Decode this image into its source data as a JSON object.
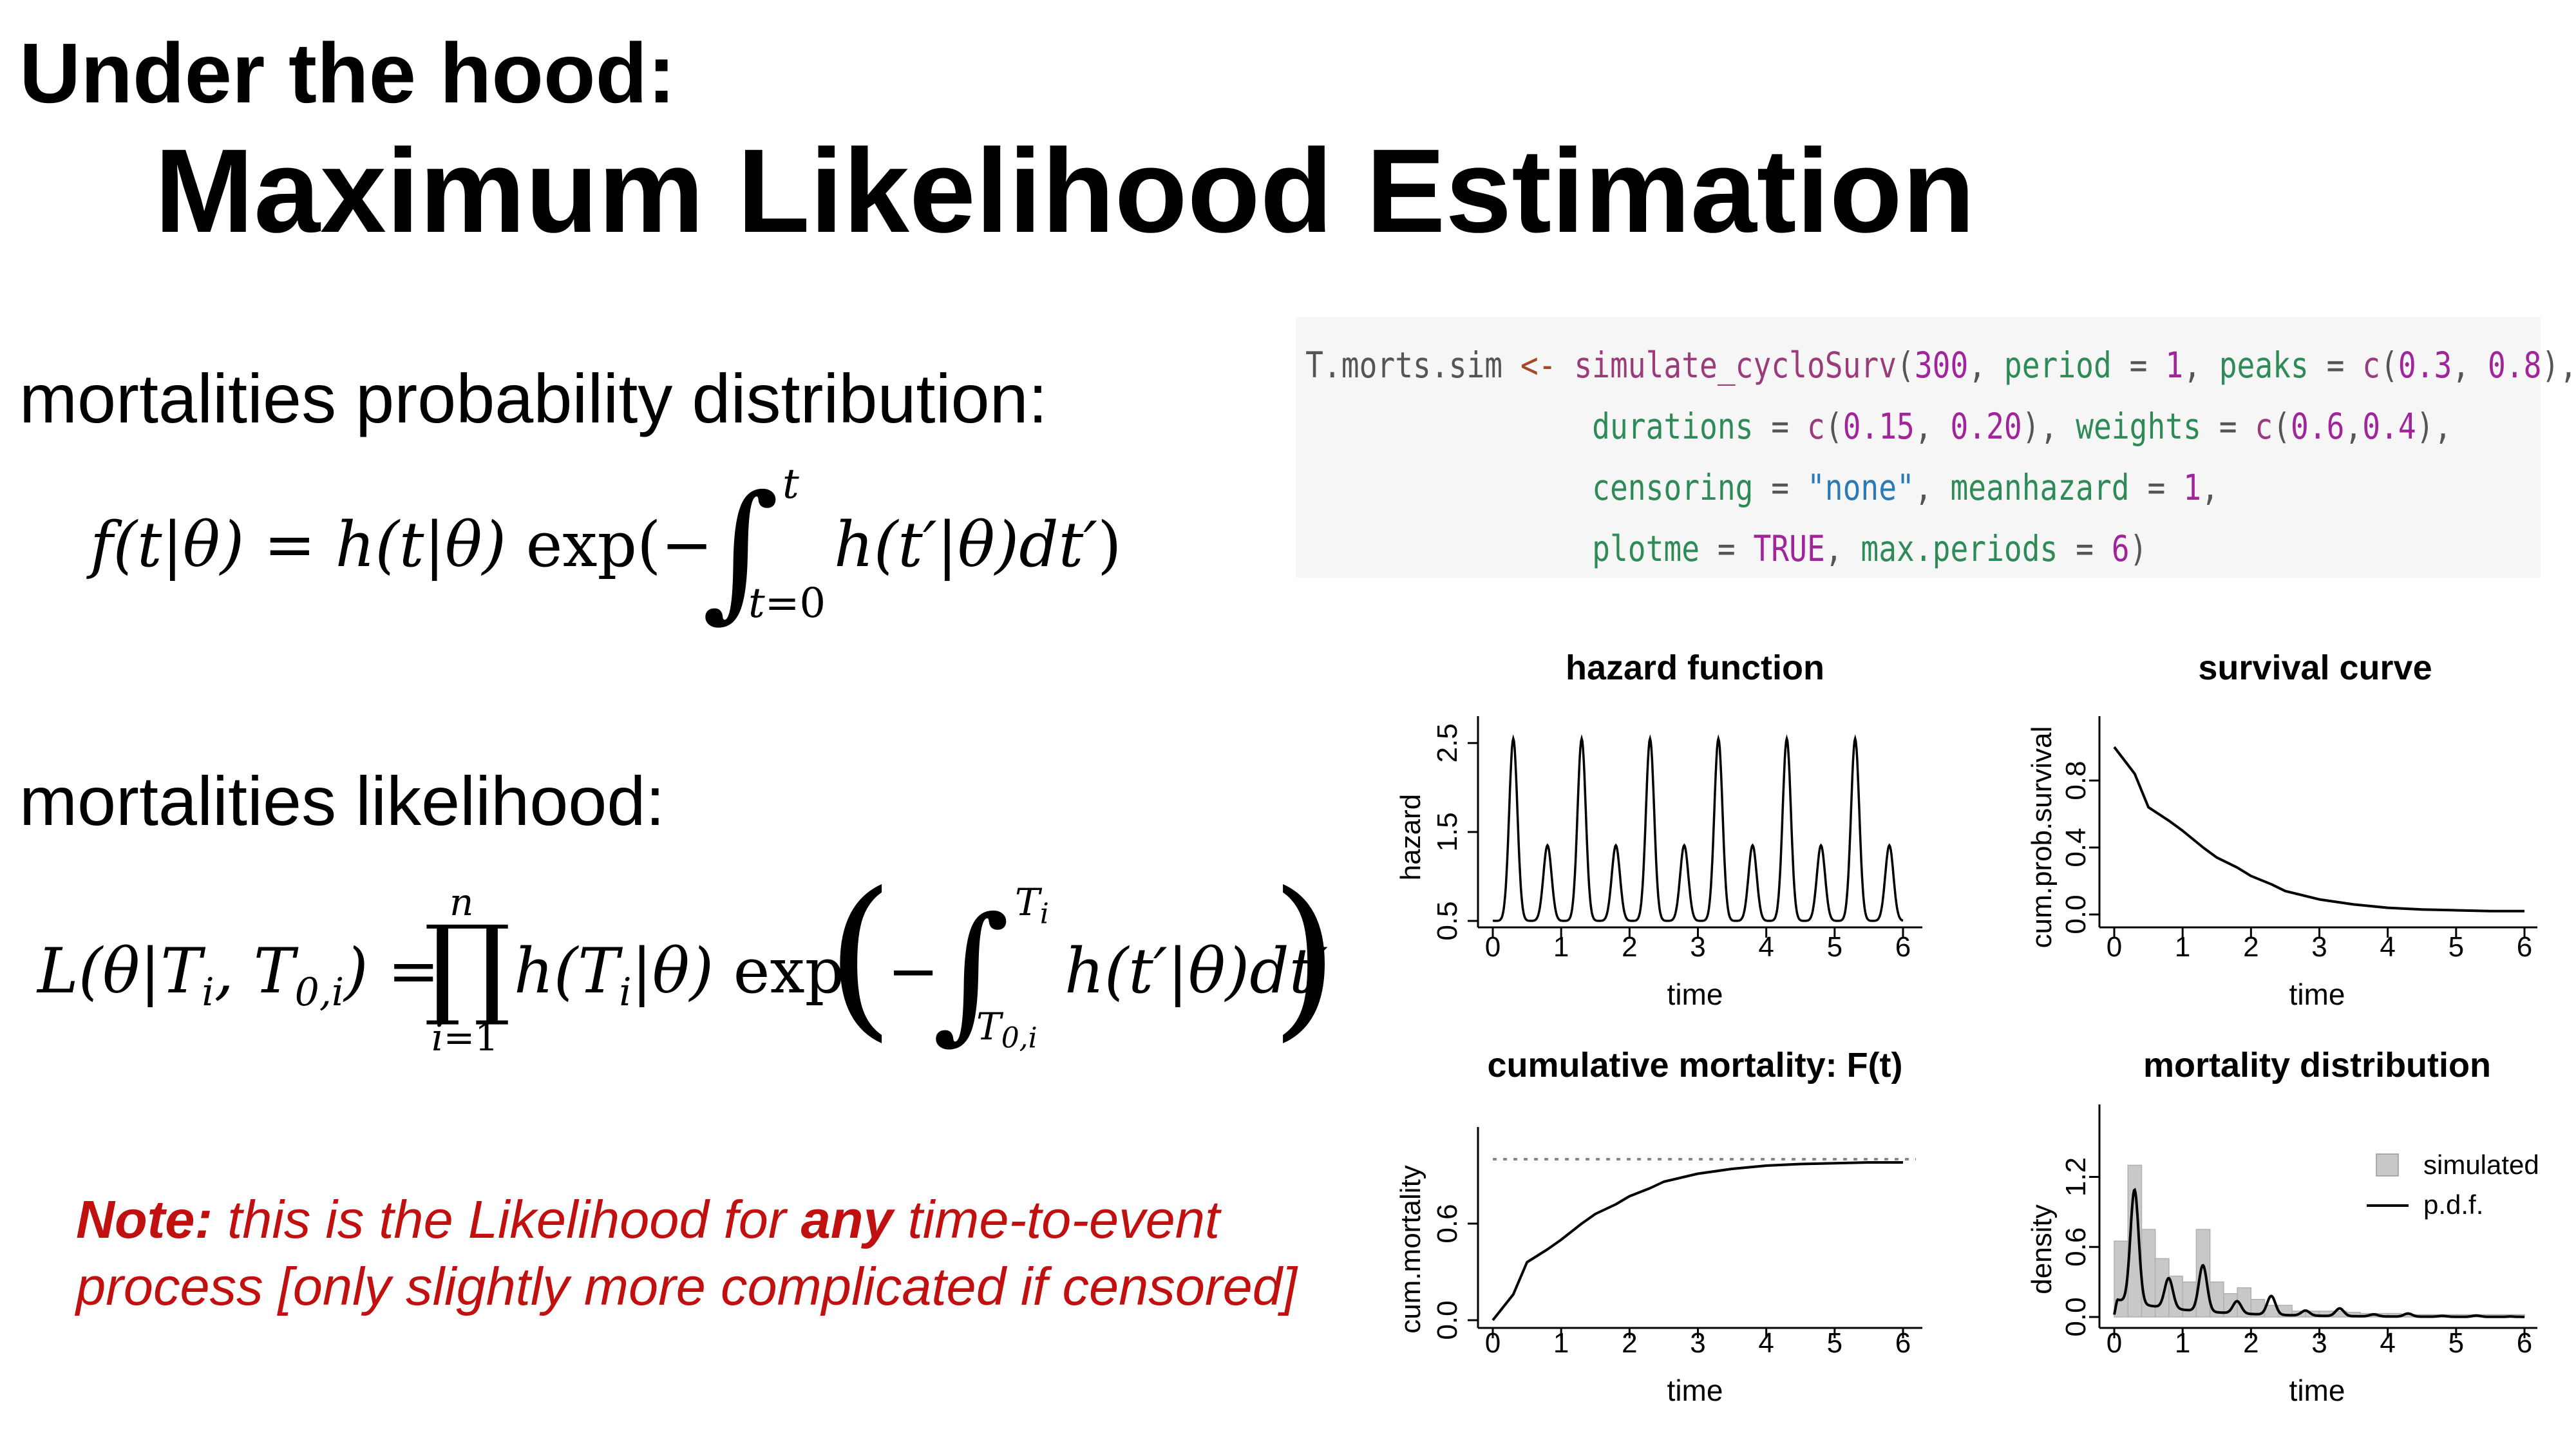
{
  "slide": {
    "title_line1": "Under the hood:",
    "title_line2": "Maximum Likelihood Estimation",
    "label_distribution": "mortalities probability distribution:",
    "label_likelihood": "mortalities likelihood:",
    "note": {
      "lead": "Note:",
      "text_a": " this is the Likelihood for ",
      "emph": "any",
      "text_b": " time-to-event process [only slightly more complicated if censored]"
    }
  },
  "code": {
    "lines": [
      [
        [
          "T.morts.sim ",
          "p"
        ],
        [
          "<- ",
          "o"
        ],
        [
          "simulate_cycloSurv",
          "f"
        ],
        [
          "(",
          "p"
        ],
        [
          "300",
          "n"
        ],
        [
          ", ",
          "p"
        ],
        [
          "period",
          "a"
        ],
        [
          " = ",
          "p"
        ],
        [
          "1",
          "n"
        ],
        [
          ", ",
          "p"
        ],
        [
          "peaks",
          "a"
        ],
        [
          " = ",
          "p"
        ],
        [
          "c",
          "f"
        ],
        [
          "(",
          "p"
        ],
        [
          "0.3",
          "n"
        ],
        [
          ", ",
          "p"
        ],
        [
          "0.8",
          "n"
        ],
        [
          "),",
          "p"
        ]
      ],
      [
        [
          "                durations",
          "a"
        ],
        [
          " = ",
          "p"
        ],
        [
          "c",
          "f"
        ],
        [
          "(",
          "p"
        ],
        [
          "0.15",
          "n"
        ],
        [
          ", ",
          "p"
        ],
        [
          "0.20",
          "n"
        ],
        [
          "), ",
          "p"
        ],
        [
          "weights",
          "a"
        ],
        [
          " = ",
          "p"
        ],
        [
          "c",
          "f"
        ],
        [
          "(",
          "p"
        ],
        [
          "0.6",
          "n"
        ],
        [
          ",",
          "p"
        ],
        [
          "0.4",
          "n"
        ],
        [
          "),",
          "p"
        ]
      ],
      [
        [
          "                censoring",
          "a"
        ],
        [
          " = ",
          "p"
        ],
        [
          "\"none\"",
          "s"
        ],
        [
          ", ",
          "p"
        ],
        [
          "meanhazard",
          "a"
        ],
        [
          " = ",
          "p"
        ],
        [
          "1",
          "n"
        ],
        [
          ",",
          "p"
        ]
      ],
      [
        [
          "                plotme",
          "a"
        ],
        [
          " = ",
          "p"
        ],
        [
          "TRUE",
          "n"
        ],
        [
          ", ",
          "p"
        ],
        [
          "max.periods",
          "a"
        ],
        [
          " = ",
          "p"
        ],
        [
          "6",
          "n"
        ],
        [
          ")",
          "p"
        ]
      ]
    ]
  },
  "chart_data": [
    {
      "type": "line",
      "title": "hazard function",
      "xlabel": "time",
      "ylabel": "hazard",
      "xlim": [
        0,
        6
      ],
      "ylim": [
        0.5,
        2.6
      ],
      "xticks": [
        "0",
        "1",
        "2",
        "3",
        "4",
        "5",
        "6"
      ],
      "yticks": [
        "0.5",
        "1.5",
        "2.5"
      ],
      "period": 1,
      "peaks": [
        0.3,
        0.8
      ],
      "peak_heights": [
        2.55,
        1.35
      ],
      "baseline": 0.5
    },
    {
      "type": "line",
      "title": "survival curve",
      "xlabel": "time",
      "ylabel": "cum.prob.survival",
      "xlim": [
        0,
        6
      ],
      "ylim": [
        0,
        1
      ],
      "xticks": [
        "0",
        "1",
        "2",
        "3",
        "4",
        "5",
        "6"
      ],
      "yticks": [
        "0.0",
        "0.4",
        "0.8"
      ],
      "x": [
        0,
        0.3,
        0.5,
        0.8,
        1.0,
        1.3,
        1.5,
        1.8,
        2.0,
        2.3,
        2.5,
        3.0,
        3.5,
        4.0,
        4.5,
        5.0,
        5.5,
        6.0
      ],
      "y": [
        1.0,
        0.84,
        0.64,
        0.56,
        0.5,
        0.4,
        0.34,
        0.28,
        0.23,
        0.18,
        0.14,
        0.09,
        0.06,
        0.04,
        0.03,
        0.025,
        0.02,
        0.02
      ]
    },
    {
      "type": "line",
      "title": "cumulative mortality: F(t)",
      "xlabel": "time",
      "ylabel": "cum.mortality",
      "xlim": [
        0,
        6
      ],
      "ylim": [
        0,
        1
      ],
      "xticks": [
        "0",
        "1",
        "2",
        "3",
        "4",
        "5",
        "6"
      ],
      "yticks": [
        "0.0",
        "0.6"
      ],
      "asymptote": 1.0,
      "x": [
        0,
        0.3,
        0.5,
        0.8,
        1.0,
        1.3,
        1.5,
        1.8,
        2.0,
        2.3,
        2.5,
        3.0,
        3.5,
        4.0,
        4.5,
        5.0,
        5.5,
        6.0
      ],
      "y": [
        0.0,
        0.16,
        0.36,
        0.44,
        0.5,
        0.6,
        0.66,
        0.72,
        0.77,
        0.82,
        0.86,
        0.91,
        0.94,
        0.96,
        0.97,
        0.975,
        0.98,
        0.98
      ]
    },
    {
      "type": "bar",
      "title": "mortality distribution",
      "xlabel": "time",
      "ylabel": "density",
      "xlim": [
        0,
        6
      ],
      "ylim": [
        0,
        1.6
      ],
      "xticks": [
        "0",
        "1",
        "2",
        "3",
        "4",
        "5",
        "6"
      ],
      "yticks": [
        "0.0",
        "0.6",
        "1.2"
      ],
      "legend": {
        "position": "right",
        "entries": [
          "simulated",
          "p.d.f."
        ]
      },
      "bin_width": 0.2,
      "bin_start": 0,
      "values": [
        0.65,
        1.3,
        0.75,
        0.5,
        0.35,
        0.3,
        0.75,
        0.3,
        0.2,
        0.25,
        0.15,
        0.1,
        0.1,
        0.05,
        0.05,
        0.05,
        0.05,
        0.04,
        0.03,
        0.03,
        0.03,
        0.02,
        0.02,
        0.02,
        0.02,
        0.02,
        0.02,
        0.02,
        0.02,
        0.02
      ],
      "series": [
        {
          "name": "p.d.f.",
          "type": "line"
        }
      ]
    }
  ]
}
